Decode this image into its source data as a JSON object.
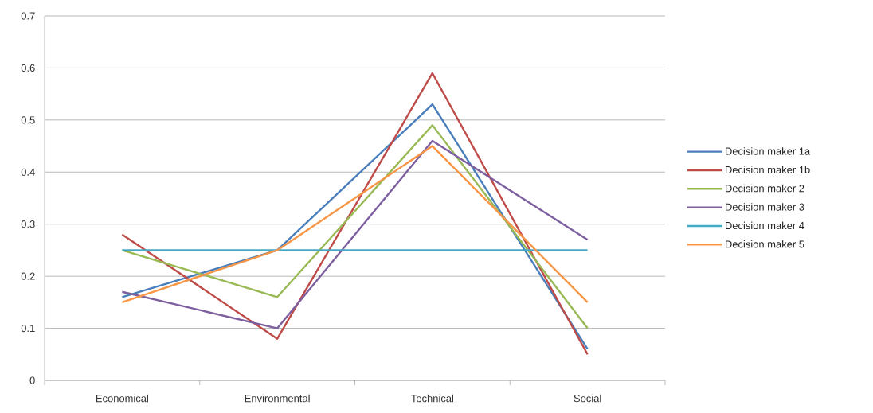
{
  "chart_data": {
    "type": "line",
    "categories": [
      "Economical",
      "Environmental",
      "Technical",
      "Social"
    ],
    "series": [
      {
        "name": "Decision maker 1a",
        "color": "#4a7ebb",
        "values": [
          0.16,
          0.25,
          0.53,
          0.06
        ]
      },
      {
        "name": "Decision maker 1b",
        "color": "#be4b48",
        "values": [
          0.28,
          0.08,
          0.59,
          0.05
        ]
      },
      {
        "name": "Decision maker 2",
        "color": "#98b954",
        "values": [
          0.25,
          0.16,
          0.49,
          0.1
        ]
      },
      {
        "name": "Decision maker 3",
        "color": "#7d5fa0",
        "values": [
          0.17,
          0.1,
          0.46,
          0.27
        ]
      },
      {
        "name": "Decision maker 4",
        "color": "#46aac5",
        "values": [
          0.25,
          0.25,
          0.25,
          0.25
        ]
      },
      {
        "name": "Decision maker 5",
        "color": "#f79646",
        "values": [
          0.15,
          0.25,
          0.45,
          0.15
        ]
      }
    ],
    "ylim": [
      0,
      0.7
    ],
    "yticks": [
      0,
      0.1,
      0.2,
      0.3,
      0.4,
      0.5,
      0.6,
      0.7
    ],
    "grid": "y",
    "legend": "right"
  }
}
